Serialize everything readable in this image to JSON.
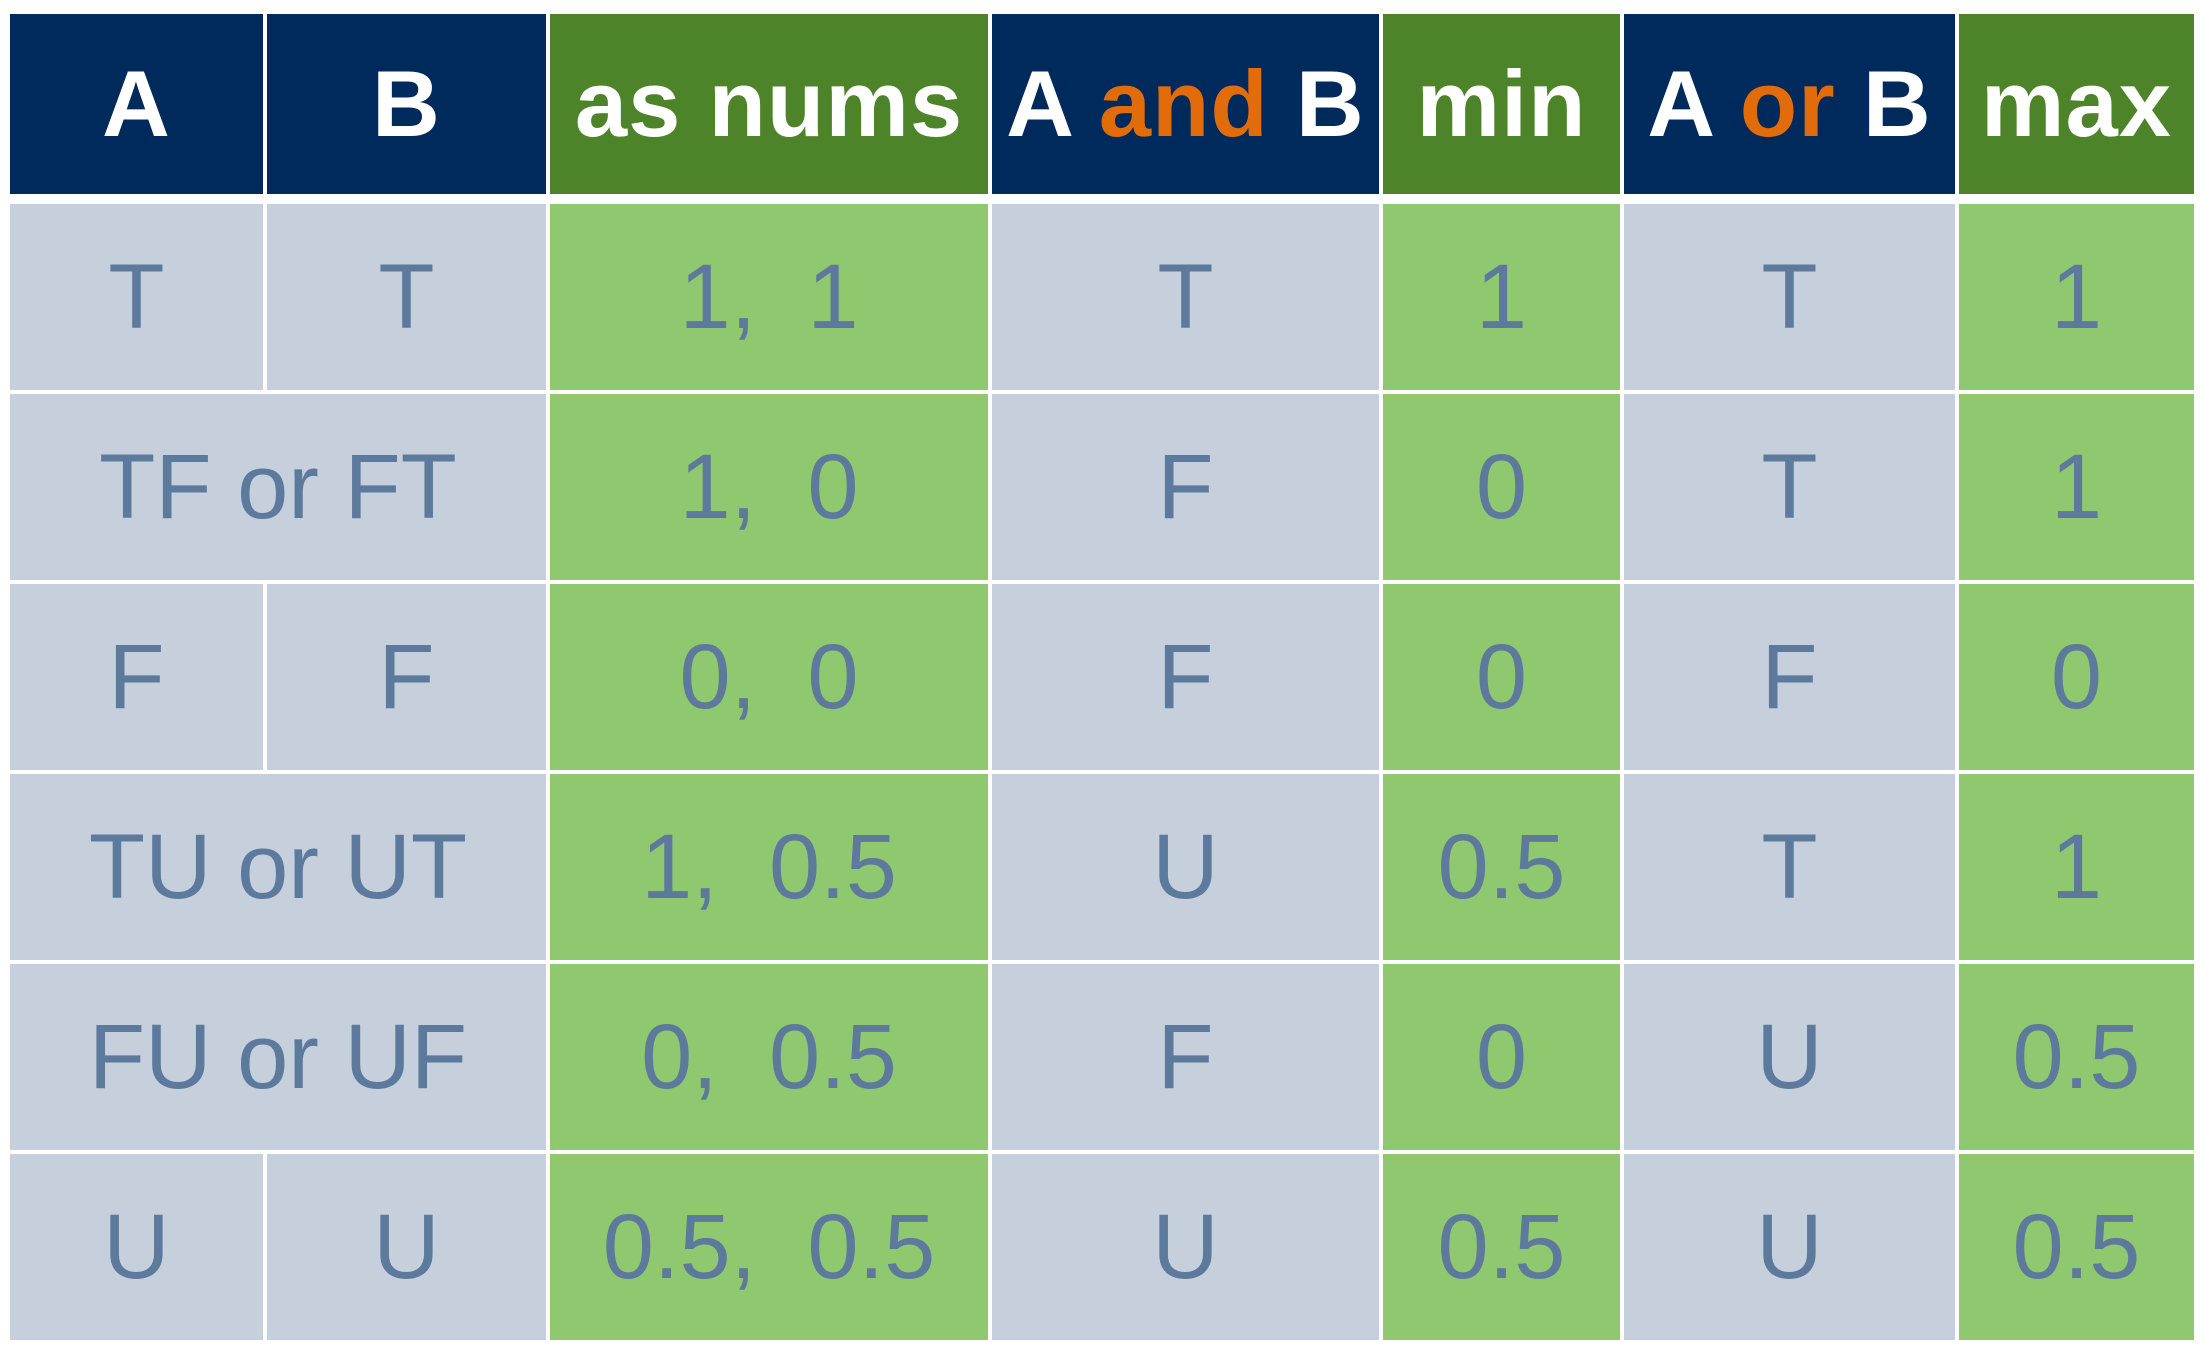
{
  "colors": {
    "header_navy": "#002a5c",
    "header_green": "#4e8429",
    "cell_gray": "#c5d0dc",
    "cell_green": "#90c870",
    "cell_text": "#5d7a9c",
    "keyword_orange": "#e36c0a"
  },
  "header": {
    "a": "A",
    "b": "B",
    "as_nums": "as nums",
    "and_col": {
      "left": "A ",
      "keyword": "and",
      "right": " B"
    },
    "min": "min",
    "or_col": {
      "left": "A ",
      "keyword": "or",
      "right": " B"
    },
    "max": "max"
  },
  "rows": [
    {
      "a": "T",
      "b": "T",
      "nums": "1,  1",
      "and": "T",
      "min": "1",
      "or": "T",
      "max": "1"
    },
    {
      "ab": "TF or FT",
      "nums": "1,  0",
      "and": "F",
      "min": "0",
      "or": "T",
      "max": "1"
    },
    {
      "a": "F",
      "b": "F",
      "nums": "0,  0",
      "and": "F",
      "min": "0",
      "or": "F",
      "max": "0"
    },
    {
      "ab": "TU or UT",
      "nums": "1,  0.5",
      "and": "U",
      "min": "0.5",
      "or": "T",
      "max": "1"
    },
    {
      "ab": "FU or UF",
      "nums": "0,  0.5",
      "and": "F",
      "min": "0",
      "or": "U",
      "max": "0.5"
    },
    {
      "a": "U",
      "b": "U",
      "nums": "0.5,  0.5",
      "and": "U",
      "min": "0.5",
      "or": "U",
      "max": "0.5"
    }
  ]
}
